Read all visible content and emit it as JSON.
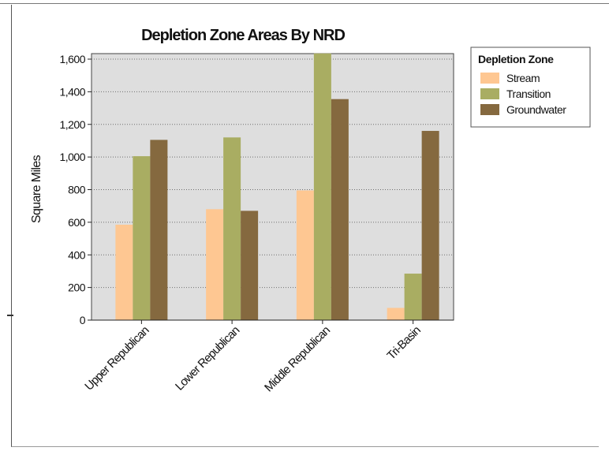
{
  "chart_data": {
    "type": "bar",
    "title": "Depletion Zone Areas By NRD",
    "xlabel": "",
    "ylabel": "Square Miles",
    "categories": [
      "Upper Republican",
      "Lower Republican",
      "Middle Republican",
      "Tri-Basin"
    ],
    "series": [
      {
        "name": "Stream",
        "values": [
          585,
          680,
          795,
          75
        ],
        "color": "#fec792"
      },
      {
        "name": "Transition",
        "values": [
          1005,
          1120,
          1635,
          285
        ],
        "color": "#a9ad62"
      },
      {
        "name": "Groundwater",
        "values": [
          1105,
          670,
          1355,
          1160
        ],
        "color": "#85693f"
      }
    ],
    "ylim": [
      0,
      1600
    ],
    "yticks": [
      0,
      200,
      400,
      600,
      800,
      1000,
      1200,
      1400,
      1600
    ],
    "ytick_labels": [
      "0",
      "200",
      "400",
      "600",
      "800",
      "1,000",
      "1,200",
      "1,400",
      "1,600"
    ],
    "grid": true,
    "legend": {
      "title": "Depletion Zone",
      "placement": "right"
    },
    "plot_background": "#dedede"
  }
}
